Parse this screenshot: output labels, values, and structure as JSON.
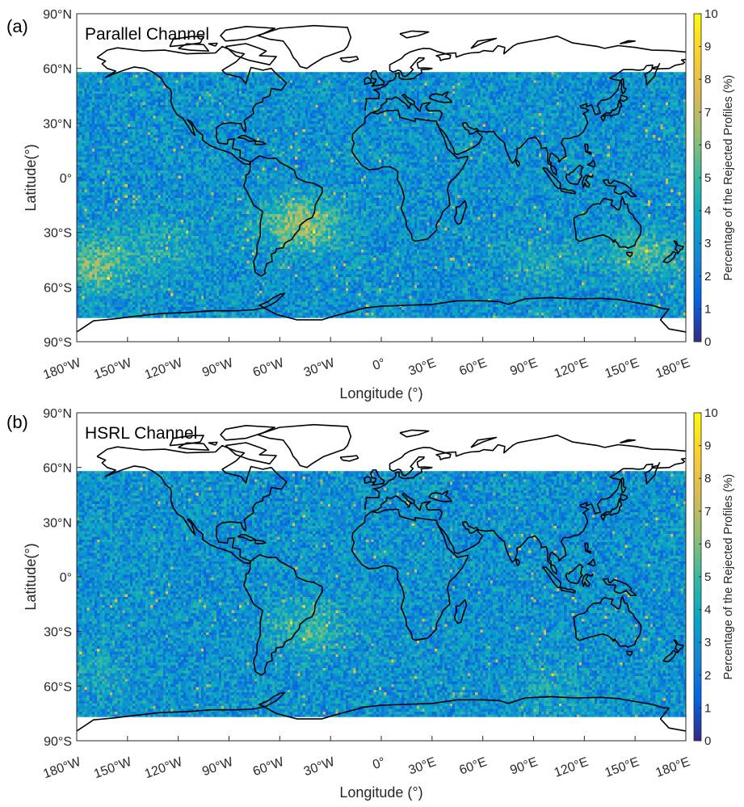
{
  "chart_data": [
    {
      "type": "heatmap",
      "panel_label": "(a)",
      "title": "Parallel Channel",
      "xlabel": "Longitude (°)",
      "ylabel": "Latitude(°)",
      "xlim": [
        -180,
        180
      ],
      "ylim": [
        -90,
        90
      ],
      "data_lat_range": [
        -77,
        58
      ],
      "x_ticks": [
        -180,
        -150,
        -120,
        -90,
        -60,
        -30,
        0,
        30,
        60,
        90,
        120,
        150,
        180
      ],
      "x_tick_labels": [
        "180°W",
        "150°W",
        "120°W",
        "90°W",
        "60°W",
        "30°W",
        "0°",
        "30°E",
        "60°E",
        "90°E",
        "120°E",
        "150°E",
        "180°E"
      ],
      "y_ticks": [
        90,
        60,
        30,
        0,
        -30,
        -60,
        -90
      ],
      "y_tick_labels": [
        "90°N",
        "60°N",
        "30°N",
        "0°",
        "30°S",
        "60°S",
        "90°S"
      ],
      "colorbar": {
        "label": "Percentage of the Rejected Profiles (%)",
        "range": [
          0,
          10
        ],
        "ticks": [
          0,
          1,
          2,
          3,
          4,
          5,
          6,
          7,
          8,
          9,
          10
        ],
        "tick_labels": [
          "0",
          "1",
          "2",
          "3",
          "4",
          "5",
          "6",
          "7",
          "8",
          "9",
          "10"
        ],
        "colormap": "parula"
      },
      "background_level": 3.0,
      "hotspots": [
        {
          "lon": -48,
          "lat": -25,
          "level": 6.5
        },
        {
          "lon": -170,
          "lat": -48,
          "level": 5.8
        },
        {
          "lon": 155,
          "lat": -42,
          "level": 5.0
        },
        {
          "lon": 95,
          "lat": -45,
          "level": 4.0
        },
        {
          "lon": -130,
          "lat": -38,
          "level": 4.2
        }
      ]
    },
    {
      "type": "heatmap",
      "panel_label": "(b)",
      "title": "HSRL Channel",
      "xlabel": "Longitude (°)",
      "ylabel": "Latitude(°)",
      "xlim": [
        -180,
        180
      ],
      "ylim": [
        -90,
        90
      ],
      "data_lat_range": [
        -77,
        58
      ],
      "x_ticks": [
        -180,
        -150,
        -120,
        -90,
        -60,
        -30,
        0,
        30,
        60,
        90,
        120,
        150,
        180
      ],
      "x_tick_labels": [
        "180°W",
        "150°W",
        "120°W",
        "90°W",
        "60°W",
        "30°W",
        "0°",
        "30°E",
        "60°E",
        "90°E",
        "120°E",
        "150°E",
        "180°E"
      ],
      "y_ticks": [
        90,
        60,
        30,
        0,
        -30,
        -60,
        -90
      ],
      "y_tick_labels": [
        "90°N",
        "60°N",
        "30°N",
        "0°",
        "30°S",
        "60°S",
        "90°S"
      ],
      "colorbar": {
        "label": "Percentage of the Rejected Profiles (%)",
        "range": [
          0,
          10
        ],
        "ticks": [
          0,
          1,
          2,
          3,
          4,
          5,
          6,
          7,
          8,
          9,
          10
        ],
        "tick_labels": [
          "0",
          "1",
          "2",
          "3",
          "4",
          "5",
          "6",
          "7",
          "8",
          "9",
          "10"
        ],
        "colormap": "parula"
      },
      "background_level": 3.0,
      "hotspots": [
        {
          "lon": -45,
          "lat": -28,
          "level": 5.0
        },
        {
          "lon": -165,
          "lat": -55,
          "level": 3.8
        },
        {
          "lon": 100,
          "lat": -60,
          "level": 3.8
        }
      ]
    }
  ]
}
